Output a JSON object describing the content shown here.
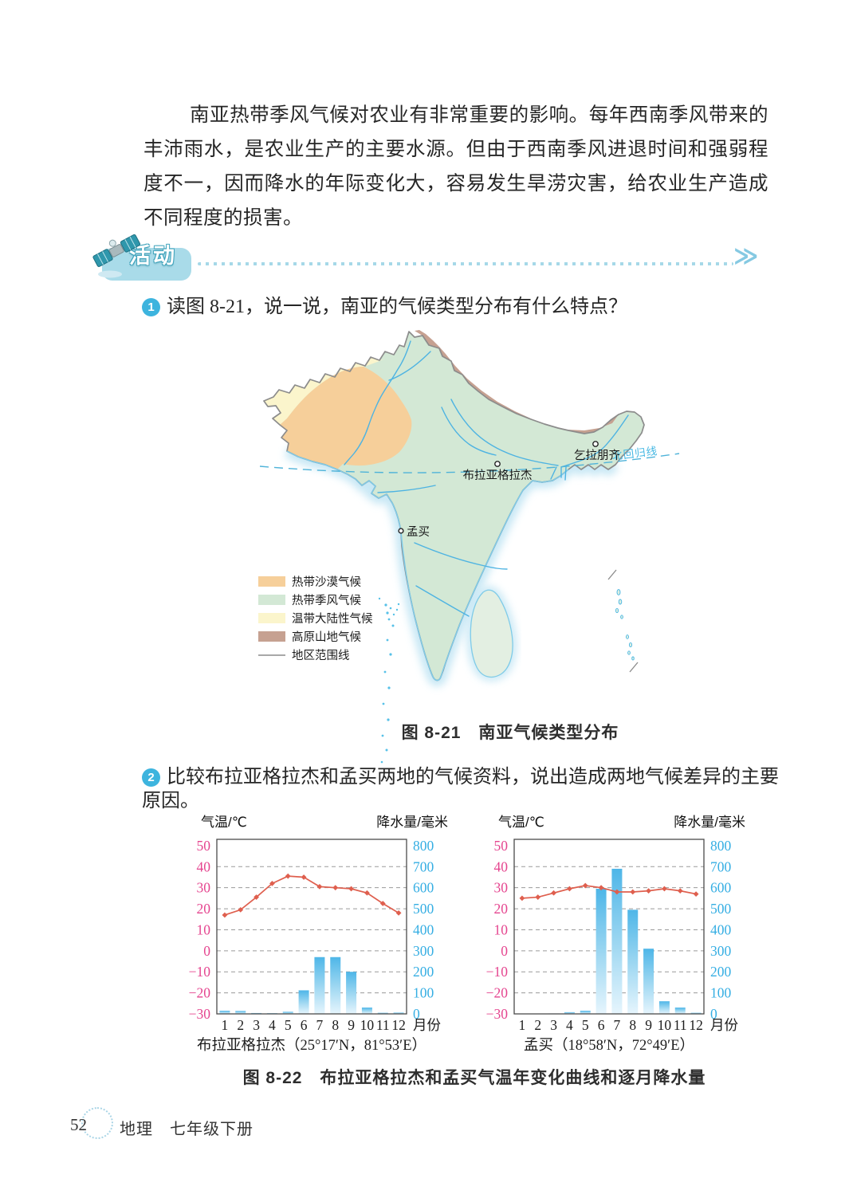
{
  "paragraph": "南亚热带季风气候对农业有非常重要的影响。每年西南季风带来的丰沛雨水，是农业生产的主要水源。但由于西南季风进退时间和强弱程度不一，因而降水的年际变化大，容易发生旱涝灾害，给农业生产造成不同程度的损害。",
  "activity": {
    "label": "活动",
    "chevrons": "≫"
  },
  "questions": [
    {
      "num": "1",
      "text": "读图 8-21，说一说，南亚的气候类型分布有什么特点？"
    },
    {
      "num": "2",
      "text": "比较布拉亚格拉杰和孟买两地的气候资料，说出造成两地气候差异的主要原因。"
    }
  ],
  "map": {
    "caption": "图 8-21　南亚气候类型分布",
    "tropic_label": "北回归线",
    "cities": [
      {
        "name": "布拉亚格拉杰"
      },
      {
        "name": "乞拉朋齐"
      },
      {
        "name": "孟买"
      }
    ],
    "legend": [
      {
        "label": "热带沙漠气候",
        "color": "#f6cf9a"
      },
      {
        "label": "热带季风气候",
        "color": "#d3e8d5"
      },
      {
        "label": "温带大陆性气候",
        "color": "#fbf5cc"
      },
      {
        "label": "高原山地气候",
        "color": "#c6a191"
      },
      {
        "label": "地区范围线",
        "color": "#8c8c8c"
      }
    ]
  },
  "chart_data": [
    {
      "type": "bar+line",
      "station_label": "布拉亚格拉杰（25°17′N，81°53′E）",
      "months": [
        1,
        2,
        3,
        4,
        5,
        6,
        7,
        8,
        9,
        10,
        11,
        12
      ],
      "month_axis_label": "月份",
      "temp_axis": {
        "title": "气温/℃",
        "ticks": [
          50,
          40,
          30,
          20,
          10,
          0,
          -10,
          -20,
          -30
        ],
        "range": [
          -30,
          53
        ],
        "color": "#e5458f"
      },
      "precip_axis": {
        "title": "降水量/毫米",
        "ticks": [
          800,
          700,
          600,
          500,
          400,
          300,
          200,
          100,
          0
        ],
        "range": [
          0,
          830
        ],
        "color": "#35aee3"
      },
      "series": [
        {
          "name": "气温年变化曲线",
          "type": "line",
          "values": [
            17,
            19.5,
            25.5,
            32,
            35.5,
            35,
            30.5,
            30,
            29.5,
            27.5,
            22.5,
            18
          ]
        },
        {
          "name": "逐月降水量",
          "type": "bar",
          "values": [
            15,
            14,
            4,
            3,
            10,
            112,
            270,
            270,
            200,
            30,
            5,
            6
          ]
        }
      ]
    },
    {
      "type": "bar+line",
      "station_label": "孟买（18°58′N，72°49′E）",
      "months": [
        1,
        2,
        3,
        4,
        5,
        6,
        7,
        8,
        9,
        10,
        11,
        12
      ],
      "month_axis_label": "月份",
      "temp_axis": {
        "title": "气温/℃",
        "ticks": [
          50,
          40,
          30,
          20,
          10,
          0,
          -10,
          -20,
          -30
        ],
        "range": [
          -30,
          53
        ],
        "color": "#e5458f"
      },
      "precip_axis": {
        "title": "降水量/毫米",
        "ticks": [
          800,
          700,
          600,
          500,
          400,
          300,
          200,
          100,
          0
        ],
        "range": [
          0,
          830
        ],
        "color": "#35aee3"
      },
      "series": [
        {
          "name": "气温年变化曲线",
          "type": "line",
          "values": [
            25,
            25.5,
            27.5,
            29.5,
            31,
            30,
            28,
            28,
            28.5,
            29.5,
            28.5,
            27
          ]
        },
        {
          "name": "逐月降水量",
          "type": "bar",
          "values": [
            0,
            0,
            2,
            8,
            15,
            595,
            690,
            495,
            310,
            60,
            30,
            5
          ]
        }
      ]
    }
  ],
  "figure22": {
    "caption": "图 8-22　布拉亚格拉杰和孟买气温年变化曲线和逐月降水量"
  },
  "footer": {
    "page": "52",
    "subject_book": "地理　七年级下册"
  },
  "colors": {
    "temp_line": "#df5f4e",
    "bar_top": "#4eb6e8",
    "bar_mid": "#9bd6f1",
    "bar_bottom": "#e6f5fd",
    "grid": "#9a9a9a",
    "frame": "#4a4a4a",
    "tick_font_serif": "serif"
  }
}
